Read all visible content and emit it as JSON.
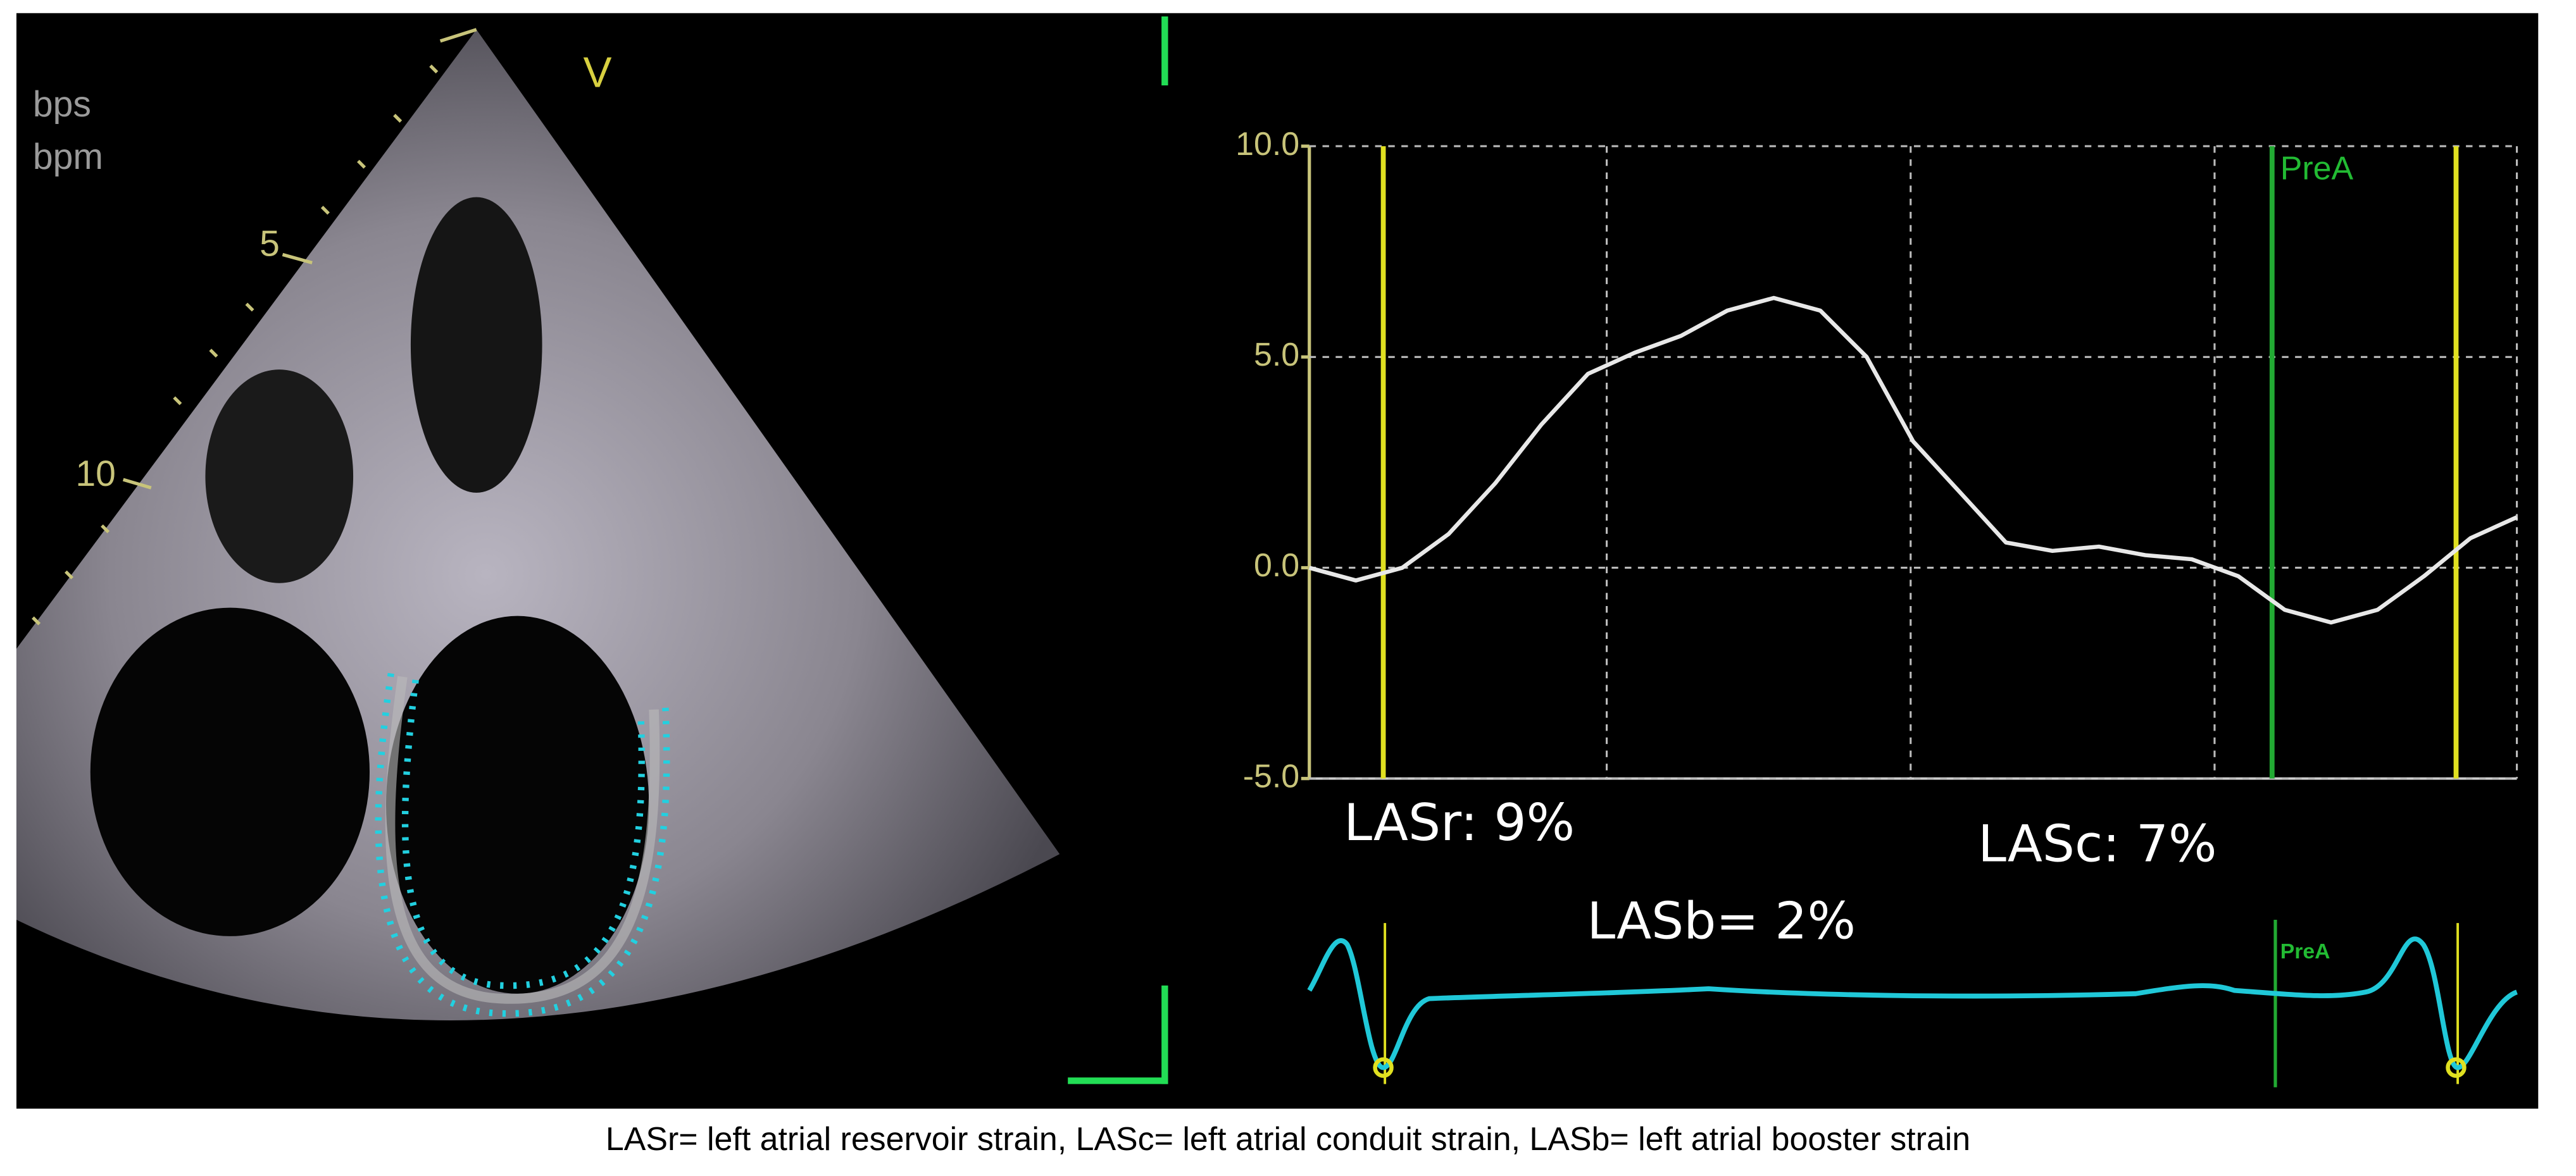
{
  "chart_data": {
    "type": "line",
    "values": [
      0.0,
      -0.3,
      0.0,
      0.8,
      2.0,
      3.4,
      4.6,
      5.1,
      5.5,
      6.1,
      6.4,
      6.1,
      5.0,
      3.0,
      1.8,
      0.6,
      0.4,
      0.5,
      0.3,
      0.2,
      -0.2,
      -1.0,
      -1.3,
      -1.0,
      -0.2,
      0.7,
      1.2
    ],
    "color": "#e8e8e8",
    "ylim": [
      -5,
      10
    ],
    "yticks": [
      {
        "value": 10,
        "label": "10.0"
      },
      {
        "value": 5,
        "label": "5.0"
      },
      {
        "value": 0,
        "label": "0.0"
      },
      {
        "value": -5,
        "label": "-5.0"
      }
    ],
    "grid": true,
    "annotations": [
      "LASr: 9%",
      "LASc: 7%",
      "LASb= 2%",
      "PreA",
      "PreA"
    ]
  },
  "echo": {
    "labels": [
      "bps",
      "bpm",
      "5",
      "10",
      "V"
    ]
  },
  "caption": "LASr= left atrial reservoir strain, LASc= left atrial conduit strain, LASb= left atrial booster strain"
}
